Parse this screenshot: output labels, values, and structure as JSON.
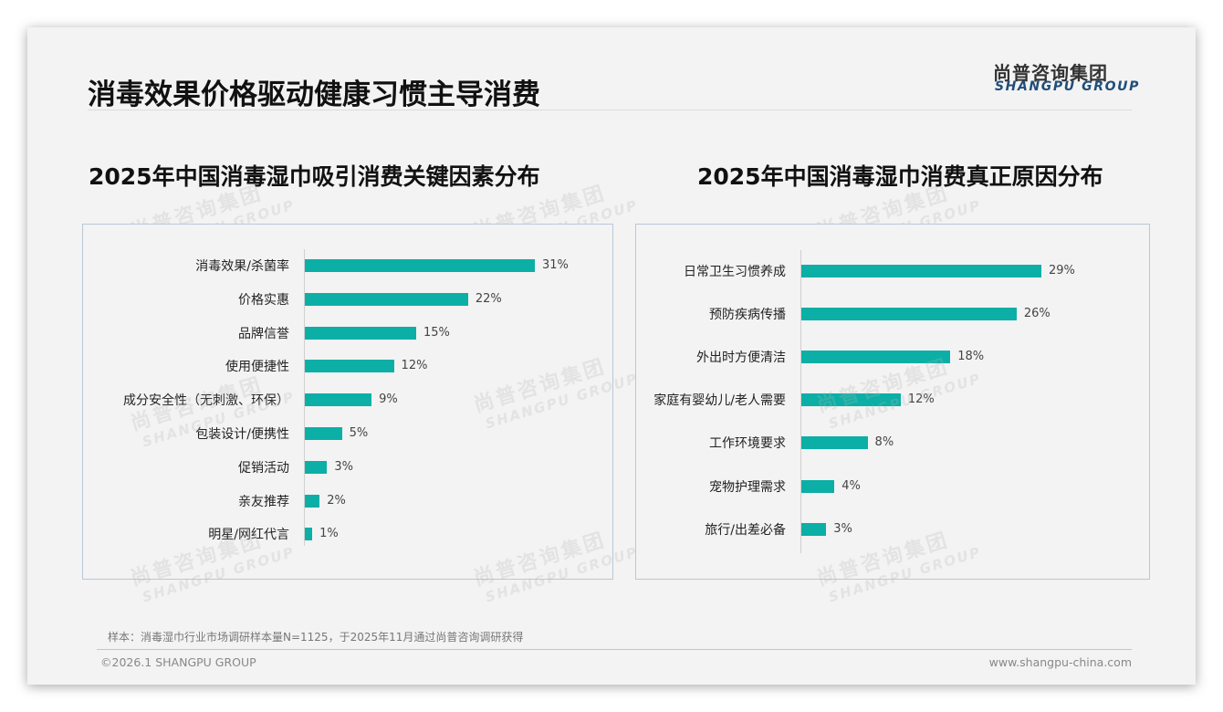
{
  "header": {
    "title": "消毒效果价格驱动健康习惯主导消费",
    "logo_cn": "尚普咨询集团",
    "logo_en": "SHANGPU GROUP"
  },
  "watermark": {
    "cn": "尚普咨询集团",
    "en": "SHANGPU GROUP"
  },
  "chart_data": [
    {
      "type": "bar",
      "orientation": "horizontal",
      "title": "2025年中国消毒湿巾吸引消费关键因素分布",
      "categories": [
        "消毒效果/杀菌率",
        "价格实惠",
        "品牌信誉",
        "使用便捷性",
        "成分安全性（无刺激、环保）",
        "包装设计/便携性",
        "促销活动",
        "亲友推荐",
        "明星/网红代言"
      ],
      "values": [
        31,
        22,
        15,
        12,
        9,
        5,
        3,
        2,
        1
      ],
      "labels": [
        "31%",
        "22%",
        "15%",
        "12%",
        "9%",
        "5%",
        "3%",
        "2%",
        "1%"
      ],
      "unit": "%",
      "color": "#0bafa6",
      "grid": false
    },
    {
      "type": "bar",
      "orientation": "horizontal",
      "title": "2025年中国消毒湿巾消费真正原因分布",
      "categories": [
        "日常卫生习惯养成",
        "预防疾病传播",
        "外出时方便清洁",
        "家庭有婴幼儿/老人需要",
        "工作环境要求",
        "宠物护理需求",
        "旅行/出差必备"
      ],
      "values": [
        29,
        26,
        18,
        12,
        8,
        4,
        3
      ],
      "labels": [
        "29%",
        "26%",
        "18%",
        "12%",
        "8%",
        "4%",
        "3%"
      ],
      "unit": "%",
      "color": "#0bafa6",
      "grid": false
    }
  ],
  "footer": {
    "note": "样本：消毒湿巾行业市场调研样本量N=1125，于2025年11月通过尚普咨询调研获得",
    "copyright": "©2026.1 SHANGPU GROUP",
    "website": "www.shangpu-china.com"
  }
}
